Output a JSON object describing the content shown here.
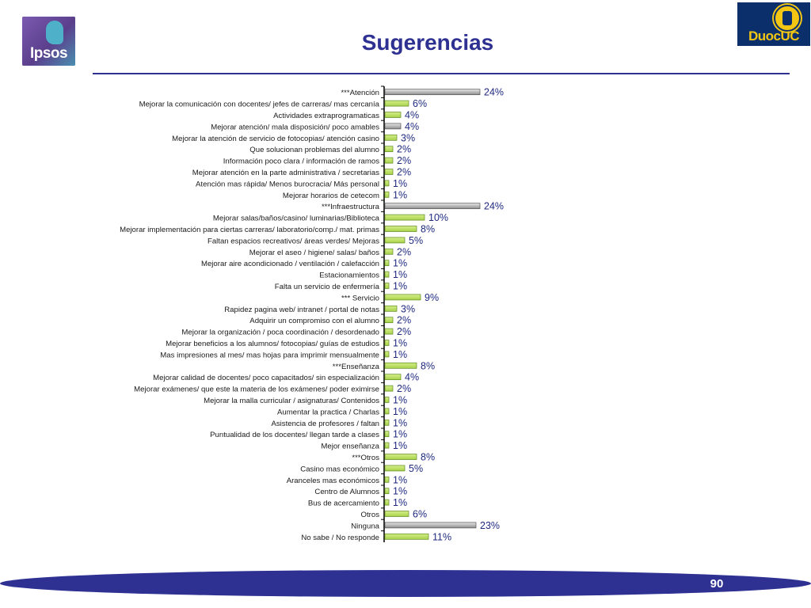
{
  "header": {
    "title": "Sugerencias",
    "left_logo": {
      "name": "Ipsos",
      "text": "Ipsos"
    },
    "right_logo": {
      "name": "DuocUC",
      "text": "DuocUC"
    }
  },
  "footer": {
    "page_number": "90"
  },
  "colors": {
    "title": "#2e3192",
    "category_bar": "#8d8d8d",
    "item_bar": "#a7d24a",
    "footer": "#2e3192"
  },
  "chart_data": {
    "type": "bar",
    "orientation": "horizontal",
    "value_unit": "%",
    "xlim": [
      0,
      25
    ],
    "grid": false,
    "legend": "none",
    "categories": [
      "***Atención",
      "Mejorar la comunicación con docentes/ jefes de carreras/ mas cercanía",
      "Actividades extraprogramaticas",
      "Mejorar atención/ mala disposición/ poco amables",
      "Mejorar la atención de servicio de fotocopias/ atención casino",
      "Que solucionan problemas del alumno",
      "Información poco clara / información de ramos",
      "Mejorar atención en la parte administrativa / secretarias",
      "Atención mas rápida/ Menos burocracia/ Más personal",
      "Mejorar horarios de cetecom",
      "***Infraestructura",
      "Mejorar salas/baños/casino/ luminarias/Biblioteca",
      "Mejorar implementación para ciertas carreras/ laboratorio/comp./ mat. primas",
      "Faltan espacios recreativos/ áreas verdes/ Mejoras",
      "Mejorar el aseo / higiene/ salas/ baños",
      "Mejorar aire acondicionado / ventilación / calefacción",
      "Estacionamientos",
      "Falta un servicio de enfermería",
      "*** Servicio",
      "Rapidez pagina web/ intranet / portal de notas",
      "Adquirir un compromiso con el alumno",
      "Mejorar la organización / poca coordinación / desordenado",
      "Mejorar beneficios a los alumnos/ fotocopias/ guías de estudios",
      "Mas impresiones al mes/ mas hojas para imprimir mensualmente",
      "***Enseñanza",
      "Mejorar calidad de docentes/ poco capacitados/ sin especialización",
      "Mejorar exámenes/ que este la materia de los exámenes/ poder eximirse",
      "Mejorar la malla curricular / asignaturas/ Contenidos",
      "Aumentar la practica / Charlas",
      "Asistencia de profesores / faltan",
      "Puntualidad de los docentes/ llegan tarde a clases",
      "Mejor enseñanza",
      "***Otros",
      "Casino mas económico",
      "Aranceles mas económicos",
      "Centro de Alumnos",
      "Bus de acercamiento",
      "Otros",
      "Ninguna",
      "No sabe / No responde"
    ],
    "values": [
      24,
      6,
      4,
      4,
      3,
      2,
      2,
      2,
      1,
      1,
      24,
      10,
      8,
      5,
      2,
      1,
      1,
      1,
      9,
      3,
      2,
      2,
      1,
      1,
      8,
      4,
      2,
      1,
      1,
      1,
      1,
      1,
      8,
      5,
      1,
      1,
      1,
      6,
      23,
      11
    ],
    "value_labels": [
      "24%",
      "6%",
      "4%",
      "4%",
      "3%",
      "2%",
      "2%",
      "2%",
      "1%",
      "1%",
      "24%",
      "10%",
      "8%",
      "5%",
      "2%",
      "1%",
      "1%",
      "1%",
      "9%",
      "3%",
      "2%",
      "2%",
      "1%",
      "1%",
      "8%",
      "4%",
      "2%",
      "1%",
      "1%",
      "1%",
      "1%",
      "1%",
      "8%",
      "5%",
      "1%",
      "1%",
      "1%",
      "6%",
      "23%",
      "11%"
    ],
    "bar_style": [
      "gray",
      "green",
      "green",
      "gray",
      "green",
      "green",
      "green",
      "green",
      "green",
      "green",
      "gray",
      "green",
      "green",
      "green",
      "green",
      "green",
      "green",
      "green",
      "green",
      "green",
      "green",
      "green",
      "green",
      "green",
      "green",
      "green",
      "green",
      "green",
      "green",
      "green",
      "green",
      "green",
      "green",
      "green",
      "green",
      "green",
      "green",
      "green",
      "gray",
      "green"
    ]
  }
}
